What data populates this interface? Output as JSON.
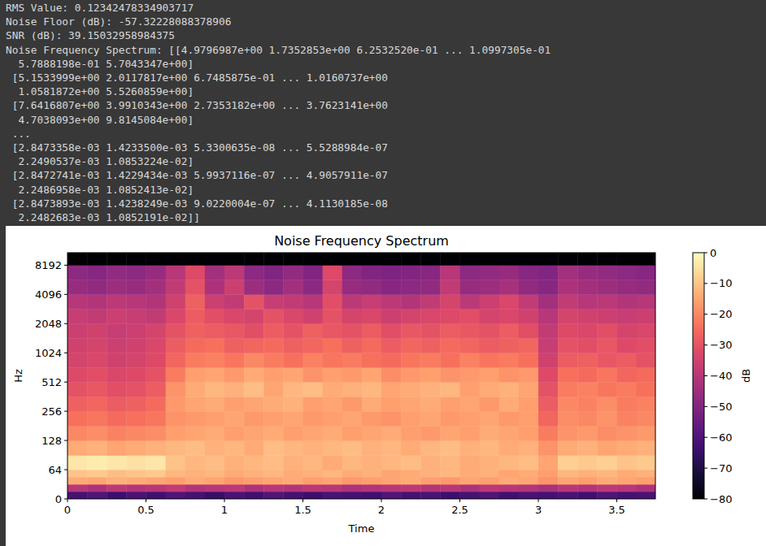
{
  "output": {
    "lines": [
      "RMS Value: 0.12342478334903717",
      "Noise Floor (dB): -57.32228088378906",
      "SNR (dB): 39.15032958984375",
      "Noise Frequency Spectrum: [[4.9796987e+00 1.7352853e+00 6.2532520e-01 ... 1.0997305e-01",
      "  5.7888198e-01 5.7043347e+00]",
      " [5.1533999e+00 2.0117817e+00 6.7485875e-01 ... 1.0160737e+00",
      "  1.0581872e+00 5.5260859e+00]",
      " [7.6416807e+00 3.9910343e+00 2.7353182e+00 ... 3.7623141e+00",
      "  4.7038093e+00 9.8145084e+00]",
      " ...",
      " [2.8473358e-03 1.4233500e-03 5.3300635e-08 ... 5.5288984e-07",
      "  2.2490537e-03 1.0853224e-02]",
      " [2.8472741e-03 1.4229434e-03 5.9937116e-07 ... 4.9057911e-07",
      "  2.2486958e-03 1.0852413e-02]",
      " [2.8473893e-03 1.4238249e-03 9.0220004e-07 ... 4.1130185e-08",
      "  2.2482683e-03 1.0852191e-02]]"
    ]
  },
  "chart_data": {
    "type": "heatmap",
    "title": "Noise Frequency Spectrum",
    "x_label": "Time",
    "y_label": "Hz",
    "log": "y",
    "xlim": [
      0,
      3.746
    ],
    "xticks": [
      0,
      0.5,
      1,
      1.5,
      2,
      2.5,
      3,
      3.5
    ],
    "ylim": [
      0,
      11025
    ],
    "yticks": [
      0,
      64,
      128,
      256,
      512,
      1024,
      2048,
      4096,
      8192
    ],
    "x_edges": [
      0,
      0.125,
      0.25,
      0.375,
      0.5,
      0.625,
      0.75,
      0.875,
      1,
      1.125,
      1.25,
      1.375,
      1.5,
      1.625,
      1.75,
      1.875,
      2,
      2.125,
      2.25,
      2.375,
      2.5,
      2.625,
      2.75,
      2.875,
      3,
      3.125,
      3.25,
      3.375,
      3.5,
      3.625,
      3.746
    ],
    "y_edges": [
      0,
      16,
      32,
      48,
      64,
      90,
      128,
      181,
      256,
      362,
      512,
      724,
      1024,
      1448,
      2048,
      2896,
      4096,
      5793,
      8192,
      11025
    ],
    "cells": [
      [
        -62,
        -60,
        -64,
        -61,
        -63,
        -60,
        -62,
        -65,
        -61,
        -63,
        -60,
        -62,
        -64,
        -61,
        -62,
        -63,
        -60,
        -62,
        -61,
        -64,
        -62,
        -60,
        -63,
        -61,
        -62,
        -61,
        -63,
        -60,
        -62,
        -61
      ],
      [
        -40,
        -42,
        -39,
        -41,
        -40,
        -38,
        -41,
        -40,
        -39,
        -42,
        -40,
        -41,
        -39,
        -40,
        -42,
        -41,
        -40,
        -39,
        -41,
        -40,
        -42,
        -39,
        -40,
        -41,
        -43,
        -40,
        -41,
        -39,
        -40,
        -42
      ],
      [
        -14,
        -15,
        -13,
        -14,
        -15,
        -16,
        -14,
        -15,
        -17,
        -16,
        -15,
        -14,
        -16,
        -15,
        -17,
        -16,
        -15,
        -14,
        -16,
        -17,
        -15,
        -16,
        -14,
        -15,
        -18,
        -15,
        -16,
        -14,
        -15,
        -16
      ],
      [
        -10,
        -9,
        -11,
        -10,
        -9,
        -12,
        -13,
        -12,
        -14,
        -13,
        -12,
        -14,
        -13,
        -12,
        -14,
        -13,
        -15,
        -14,
        -13,
        -12,
        -14,
        -13,
        -15,
        -14,
        -16,
        -12,
        -13,
        -12,
        -14,
        -13
      ],
      [
        -4,
        -3,
        -4,
        -5,
        -4,
        -10,
        -12,
        -11,
        -13,
        -12,
        -11,
        -13,
        -12,
        -14,
        -12,
        -13,
        -12,
        -11,
        -13,
        -12,
        -14,
        -13,
        -12,
        -11,
        -15,
        -8,
        -9,
        -8,
        -10,
        -9
      ],
      [
        -14,
        -13,
        -15,
        -14,
        -13,
        -12,
        -11,
        -13,
        -12,
        -14,
        -11,
        -12,
        -13,
        -12,
        -11,
        -13,
        -12,
        -14,
        -12,
        -11,
        -13,
        -12,
        -14,
        -13,
        -18,
        -14,
        -13,
        -15,
        -14,
        -13
      ],
      [
        -20,
        -19,
        -21,
        -20,
        -19,
        -16,
        -15,
        -14,
        -16,
        -15,
        -14,
        -16,
        -15,
        -14,
        -16,
        -15,
        -14,
        -16,
        -17,
        -15,
        -16,
        -14,
        -15,
        -16,
        -22,
        -18,
        -17,
        -19,
        -18,
        -17
      ],
      [
        -24,
        -23,
        -25,
        -24,
        -23,
        -18,
        -17,
        -16,
        -15,
        -17,
        -16,
        -15,
        -17,
        -16,
        -15,
        -17,
        -18,
        -16,
        -15,
        -17,
        -16,
        -15,
        -17,
        -16,
        -26,
        -19,
        -20,
        -18,
        -21,
        -20
      ],
      [
        -27,
        -26,
        -28,
        -27,
        -25,
        -17,
        -15,
        -14,
        -16,
        -15,
        -14,
        -13,
        -16,
        -15,
        -17,
        -14,
        -16,
        -15,
        -14,
        -16,
        -15,
        -17,
        -14,
        -16,
        -28,
        -20,
        -21,
        -19,
        -22,
        -21
      ],
      [
        -30,
        -29,
        -31,
        -30,
        -28,
        -18,
        -14,
        -12,
        -13,
        -11,
        -15,
        -12,
        -11,
        -14,
        -13,
        -12,
        -15,
        -14,
        -13,
        -12,
        -16,
        -14,
        -13,
        -15,
        -30,
        -22,
        -21,
        -23,
        -22,
        -24
      ],
      [
        -32,
        -31,
        -33,
        -32,
        -30,
        -22,
        -16,
        -15,
        -17,
        -14,
        -16,
        -15,
        -18,
        -16,
        -17,
        -15,
        -19,
        -17,
        -16,
        -18,
        -17,
        -16,
        -18,
        -17,
        -32,
        -24,
        -25,
        -23,
        -26,
        -25
      ],
      [
        -34,
        -33,
        -35,
        -34,
        -32,
        -26,
        -22,
        -21,
        -23,
        -20,
        -22,
        -24,
        -21,
        -23,
        -22,
        -24,
        -25,
        -23,
        -22,
        -24,
        -21,
        -23,
        -22,
        -24,
        -35,
        -28,
        -27,
        -29,
        -28,
        -30
      ],
      [
        -35,
        -34,
        -36,
        -35,
        -33,
        -28,
        -25,
        -24,
        -27,
        -26,
        -25,
        -27,
        -26,
        -24,
        -27,
        -25,
        -28,
        -26,
        -27,
        -25,
        -26,
        -28,
        -27,
        -26,
        -37,
        -30,
        -31,
        -29,
        -32,
        -31
      ],
      [
        -36,
        -35,
        -37,
        -36,
        -34,
        -30,
        -27,
        -28,
        -29,
        -31,
        -28,
        -30,
        -27,
        -29,
        -30,
        -28,
        -31,
        -29,
        -30,
        -28,
        -29,
        -30,
        -28,
        -31,
        -38,
        -32,
        -33,
        -31,
        -34,
        -33
      ],
      [
        -37,
        -38,
        -36,
        -37,
        -38,
        -33,
        -28,
        -31,
        -33,
        -34,
        -30,
        -33,
        -35,
        -30,
        -34,
        -33,
        -36,
        -34,
        -33,
        -32,
        -31,
        -34,
        -33,
        -35,
        -40,
        -34,
        -35,
        -36,
        -37,
        -36
      ],
      [
        -40,
        -41,
        -39,
        -40,
        -41,
        -35,
        -27,
        -36,
        -38,
        -30,
        -37,
        -38,
        -40,
        -31,
        -39,
        -37,
        -39,
        -41,
        -38,
        -34,
        -39,
        -36,
        -33,
        -38,
        -44,
        -38,
        -40,
        -39,
        -41,
        -40
      ],
      [
        -46,
        -47,
        -45,
        -46,
        -44,
        -38,
        -30,
        -42,
        -36,
        -45,
        -48,
        -44,
        -48,
        -34,
        -46,
        -47,
        -49,
        -48,
        -47,
        -38,
        -46,
        -45,
        -43,
        -47,
        -49,
        -42,
        -44,
        -45,
        -46,
        -47
      ],
      [
        -48,
        -49,
        -47,
        -48,
        -46,
        -40,
        -32,
        -44,
        -39,
        -48,
        -50,
        -47,
        -50,
        -32,
        -48,
        -50,
        -51,
        -50,
        -49,
        -40,
        -48,
        -47,
        -46,
        -49,
        -50,
        -44,
        -46,
        -47,
        -48,
        -49
      ],
      [
        -80,
        -80,
        -80,
        -80,
        -80,
        -80,
        -80,
        -80,
        -80,
        -80,
        -80,
        -80,
        -80,
        -80,
        -80,
        -80,
        -80,
        -80,
        -80,
        -80,
        -80,
        -80,
        -80,
        -80,
        -80,
        -80,
        -80,
        -80,
        -80,
        -80
      ]
    ],
    "colorbar": {
      "label": "dB",
      "range": [
        -80,
        0
      ],
      "ticks": [
        {
          "value": 0,
          "label": "0"
        },
        {
          "value": -10,
          "label": "−10"
        },
        {
          "value": -20,
          "label": "−20"
        },
        {
          "value": -30,
          "label": "−30"
        },
        {
          "value": -40,
          "label": "−40"
        },
        {
          "value": -50,
          "label": "−50"
        },
        {
          "value": -60,
          "label": "−60"
        },
        {
          "value": -70,
          "label": "−70"
        },
        {
          "value": -80,
          "label": "−80"
        }
      ]
    }
  }
}
